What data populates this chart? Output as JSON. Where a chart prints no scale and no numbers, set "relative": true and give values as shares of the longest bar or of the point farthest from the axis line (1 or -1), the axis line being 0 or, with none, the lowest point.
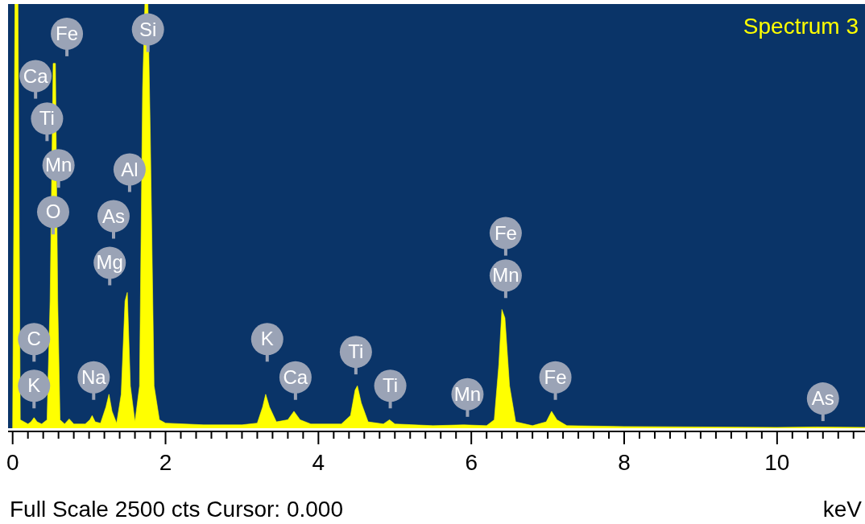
{
  "chart_data": {
    "type": "area",
    "relative": true,
    "xlabel": "keV",
    "annotations": [
      "Full Scale 2500 cts Cursor: 0.000",
      {
        "text": "Fe",
        "x": 0.71,
        "y": 0.93
      },
      {
        "text": "Ca",
        "x": 0.3,
        "y": 0.83
      },
      {
        "text": "Ti",
        "x": 0.45,
        "y": 0.73
      },
      {
        "text": "Mn",
        "x": 0.6,
        "y": 0.62
      },
      {
        "text": "O",
        "x": 0.53,
        "y": 0.51
      },
      {
        "text": "Si",
        "x": 1.77,
        "y": 0.94
      },
      {
        "text": "Al",
        "x": 1.53,
        "y": 0.61
      },
      {
        "text": "As",
        "x": 1.32,
        "y": 0.5
      },
      {
        "text": "Mg",
        "x": 1.27,
        "y": 0.39
      },
      {
        "text": "C",
        "x": 0.28,
        "y": 0.21
      },
      {
        "text": "K",
        "x": 0.28,
        "y": 0.1
      },
      {
        "text": "Na",
        "x": 1.06,
        "y": 0.12
      },
      {
        "text": "K",
        "x": 3.33,
        "y": 0.21
      },
      {
        "text": "Ca",
        "x": 3.7,
        "y": 0.12
      },
      {
        "text": "Ti",
        "x": 4.49,
        "y": 0.18
      },
      {
        "text": "Ti",
        "x": 4.94,
        "y": 0.1
      },
      {
        "text": "Mn",
        "x": 5.95,
        "y": 0.08
      },
      {
        "text": "Fe",
        "x": 6.45,
        "y": 0.46
      },
      {
        "text": "Mn",
        "x": 6.45,
        "y": 0.36
      },
      {
        "text": "Fe",
        "x": 7.1,
        "y": 0.12
      },
      {
        "text": "As",
        "x": 10.6,
        "y": 0.07
      }
    ],
    "xlim": [
      -0.06,
      11.15
    ],
    "xticks": [
      0,
      {
        "value": 0.2,
        "label": null
      },
      {
        "value": 0.4,
        "label": null
      },
      {
        "value": 0.6,
        "label": null
      },
      {
        "value": 0.8,
        "label": null
      },
      {
        "value": 1,
        "label": null
      },
      {
        "value": 1.2,
        "label": null
      },
      {
        "value": 1.4,
        "label": null
      },
      {
        "value": 1.6,
        "label": null
      },
      {
        "value": 1.8,
        "label": null
      },
      2,
      {
        "value": 2.2,
        "label": null
      },
      {
        "value": 2.4,
        "label": null
      },
      {
        "value": 2.6,
        "label": null
      },
      {
        "value": 2.8,
        "label": null
      },
      {
        "value": 3,
        "label": null
      },
      {
        "value": 3.2,
        "label": null
      },
      {
        "value": 3.4,
        "label": null
      },
      {
        "value": 3.6,
        "label": null
      },
      {
        "value": 3.8,
        "label": null
      },
      4,
      {
        "value": 4.2,
        "label": null
      },
      {
        "value": 4.4,
        "label": null
      },
      {
        "value": 4.6,
        "label": null
      },
      {
        "value": 4.8,
        "label": null
      },
      {
        "value": 5,
        "label": null
      },
      {
        "value": 5.2,
        "label": null
      },
      {
        "value": 5.4,
        "label": null
      },
      {
        "value": 5.6,
        "label": null
      },
      {
        "value": 5.8,
        "label": null
      },
      6,
      {
        "value": 6.2,
        "label": null
      },
      {
        "value": 6.4,
        "label": null
      },
      {
        "value": 6.6,
        "label": null
      },
      {
        "value": 6.8,
        "label": null
      },
      {
        "value": 7,
        "label": null
      },
      {
        "value": 7.2,
        "label": null
      },
      {
        "value": 7.4,
        "label": null
      },
      {
        "value": 7.6,
        "label": null
      },
      {
        "value": 7.8,
        "label": null
      },
      8,
      {
        "value": 8.2,
        "label": null
      },
      {
        "value": 8.4,
        "label": null
      },
      {
        "value": 8.6,
        "label": null
      },
      {
        "value": 8.8,
        "label": null
      },
      {
        "value": 9,
        "label": null
      },
      {
        "value": 9.2,
        "label": null
      },
      {
        "value": 9.4,
        "label": null
      },
      {
        "value": 9.6,
        "label": null
      },
      {
        "value": 9.8,
        "label": null
      },
      10,
      {
        "value": 10.2,
        "label": null
      },
      {
        "value": 10.4,
        "label": null
      },
      {
        "value": 10.6,
        "label": null
      },
      {
        "value": 10.8,
        "label": null
      },
      {
        "value": 11,
        "label": null
      }
    ],
    "legend": "top right",
    "series": [
      {
        "name": "Spectrum 3",
        "color": "#ffff00",
        "x": [
          0,
          0.03,
          0.07,
          0.1,
          0.2,
          0.24,
          0.28,
          0.32,
          0.38,
          0.45,
          0.49,
          0.53,
          0.56,
          0.59,
          0.62,
          0.68,
          0.74,
          0.8,
          0.95,
          1.01,
          1.04,
          1.08,
          1.15,
          1.22,
          1.26,
          1.3,
          1.36,
          1.42,
          1.47,
          1.5,
          1.54,
          1.6,
          1.66,
          1.7,
          1.73,
          1.77,
          1.8,
          1.85,
          1.92,
          2,
          2.5,
          3,
          3.2,
          3.27,
          3.31,
          3.36,
          3.45,
          3.6,
          3.68,
          3.76,
          3.9,
          4.3,
          4.42,
          4.48,
          4.51,
          4.56,
          4.65,
          4.85,
          4.93,
          5,
          5.5,
          5.9,
          6.2,
          6.3,
          6.36,
          6.4,
          6.44,
          6.5,
          6.58,
          6.8,
          6.98,
          7.05,
          7.12,
          7.25,
          8,
          9,
          10,
          10.5,
          11.15
        ],
        "values": [
          0,
          1,
          1,
          0.02,
          0.01,
          0.015,
          0.025,
          0.015,
          0.01,
          0.02,
          0.3,
          0.86,
          0.86,
          0.3,
          0.02,
          0.01,
          0.022,
          0.01,
          0.01,
          0.02,
          0.03,
          0.015,
          0.012,
          0.05,
          0.08,
          0.04,
          0.012,
          0.08,
          0.3,
          0.32,
          0.1,
          0.015,
          0.1,
          0.8,
          1,
          1,
          0.7,
          0.1,
          0.02,
          0.012,
          0.008,
          0.008,
          0.012,
          0.05,
          0.08,
          0.05,
          0.015,
          0.02,
          0.04,
          0.02,
          0.01,
          0.01,
          0.03,
          0.09,
          0.1,
          0.06,
          0.015,
          0.01,
          0.02,
          0.01,
          0.006,
          0.008,
          0.006,
          0.02,
          0.15,
          0.28,
          0.26,
          0.1,
          0.015,
          0.006,
          0.015,
          0.04,
          0.02,
          0.006,
          0.004,
          0.003,
          0.002,
          0.003,
          0.002
        ]
      }
    ]
  }
}
